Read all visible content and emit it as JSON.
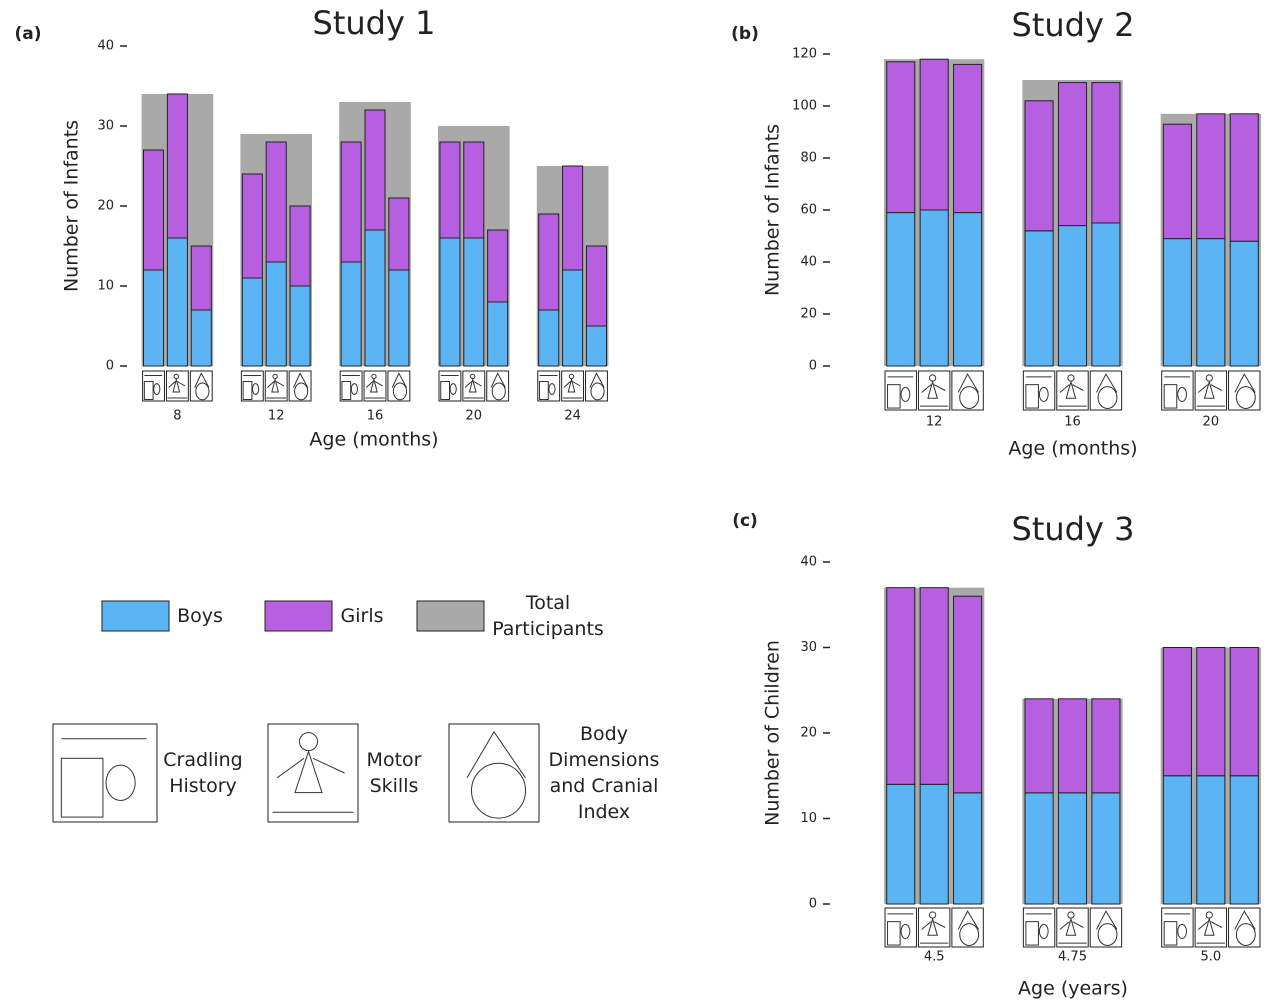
{
  "chart_data": [
    {
      "type": "bar",
      "panel_label": "(a)",
      "title": "Study 1",
      "x_label": "Age (months)",
      "y_label": "Number of Infants",
      "categories": [
        "8",
        "12",
        "16",
        "20",
        "24"
      ],
      "series": [
        {
          "name": "Total Participants",
          "color": "#a9a9a9",
          "values": [
            34,
            29,
            33,
            30,
            25
          ]
        },
        {
          "name": "Boys",
          "color": "#5bb5f5",
          "values": [
            [
              12,
              16,
              7
            ],
            [
              11,
              13,
              10
            ],
            [
              13,
              17,
              12
            ],
            [
              16,
              16,
              8
            ],
            [
              7,
              12,
              5
            ]
          ]
        },
        {
          "name": "Girls",
          "color": "#b65fe0",
          "values": [
            [
              15,
              18,
              8
            ],
            [
              13,
              15,
              10
            ],
            [
              15,
              15,
              9
            ],
            [
              12,
              12,
              9
            ],
            [
              12,
              13,
              10
            ]
          ]
        }
      ],
      "ylim": [
        0,
        40
      ],
      "yticks": [
        0,
        10,
        20,
        30,
        40
      ]
    },
    {
      "type": "bar",
      "panel_label": "(b)",
      "title": "Study 2",
      "x_label": "Age (months)",
      "y_label": "Number of Infants",
      "categories": [
        "12",
        "16",
        "20"
      ],
      "series": [
        {
          "name": "Total Participants",
          "color": "#a9a9a9",
          "values": [
            118,
            110,
            97
          ]
        },
        {
          "name": "Boys",
          "color": "#5bb5f5",
          "values": [
            [
              59,
              60,
              59
            ],
            [
              52,
              54,
              55
            ],
            [
              49,
              49,
              48
            ]
          ]
        },
        {
          "name": "Girls",
          "color": "#b65fe0",
          "values": [
            [
              58,
              58,
              57
            ],
            [
              50,
              55,
              54
            ],
            [
              44,
              48,
              49
            ]
          ]
        }
      ],
      "ylim": [
        0,
        120
      ],
      "yticks": [
        0,
        20,
        40,
        60,
        80,
        100,
        120
      ]
    },
    {
      "type": "bar",
      "panel_label": "(c)",
      "title": "Study 3",
      "x_label": "Age (years)",
      "y_label": "Number of Children",
      "categories": [
        "4.5",
        "4.75",
        "5.0"
      ],
      "series": [
        {
          "name": "Total Participants",
          "color": "#a9a9a9",
          "values": [
            37,
            24,
            30
          ]
        },
        {
          "name": "Boys",
          "color": "#5bb5f5",
          "values": [
            [
              14,
              14,
              13
            ],
            [
              13,
              13,
              13
            ],
            [
              15,
              15,
              15
            ]
          ]
        },
        {
          "name": "Girls",
          "color": "#b65fe0",
          "values": [
            [
              23,
              23,
              23
            ],
            [
              11,
              11,
              11
            ],
            [
              15,
              15,
              15
            ]
          ]
        }
      ],
      "ylim": [
        0,
        40
      ],
      "yticks": [
        0,
        10,
        20,
        30,
        40
      ]
    }
  ],
  "measures": [
    "Cradling History",
    "Motor Skills",
    "Body Dimensions and Cranial Index"
  ]
}
